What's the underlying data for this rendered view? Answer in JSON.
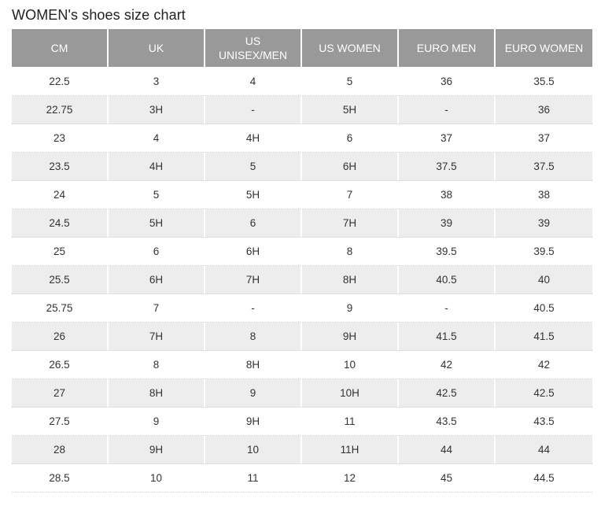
{
  "title": "WOMEN's shoes size chart",
  "table": {
    "headers": [
      [
        "CM"
      ],
      [
        "UK"
      ],
      [
        "US",
        "UNISEX/MEN"
      ],
      [
        "US WOMEN"
      ],
      [
        "EURO MEN"
      ],
      [
        "EURO WOMEN"
      ]
    ],
    "rows": [
      [
        "22.5",
        "3",
        "4",
        "5",
        "36",
        "35.5"
      ],
      [
        "22.75",
        "3H",
        "-",
        "5H",
        "-",
        "36"
      ],
      [
        "23",
        "4",
        "4H",
        "6",
        "37",
        "37"
      ],
      [
        "23.5",
        "4H",
        "5",
        "6H",
        "37.5",
        "37.5"
      ],
      [
        "24",
        "5",
        "5H",
        "7",
        "38",
        "38"
      ],
      [
        "24.5",
        "5H",
        "6",
        "7H",
        "39",
        "39"
      ],
      [
        "25",
        "6",
        "6H",
        "8",
        "39.5",
        "39.5"
      ],
      [
        "25.5",
        "6H",
        "7H",
        "8H",
        "40.5",
        "40"
      ],
      [
        "25.75",
        "7",
        "-",
        "9",
        "-",
        "40.5"
      ],
      [
        "26",
        "7H",
        "8",
        "9H",
        "41.5",
        "41.5"
      ],
      [
        "26.5",
        "8",
        "8H",
        "10",
        "42",
        "42"
      ],
      [
        "27",
        "8H",
        "9",
        "10H",
        "42.5",
        "42.5"
      ],
      [
        "27.5",
        "9",
        "9H",
        "11",
        "43.5",
        "43.5"
      ],
      [
        "28",
        "9H",
        "10",
        "11H",
        "44",
        "44"
      ],
      [
        "28.5",
        "10",
        "11",
        "12",
        "45",
        "44.5"
      ]
    ]
  },
  "colors": {
    "header_background": "#999999",
    "header_text": "#ffffff",
    "stripe_background": "#ededed",
    "cell_text": "#333333"
  }
}
